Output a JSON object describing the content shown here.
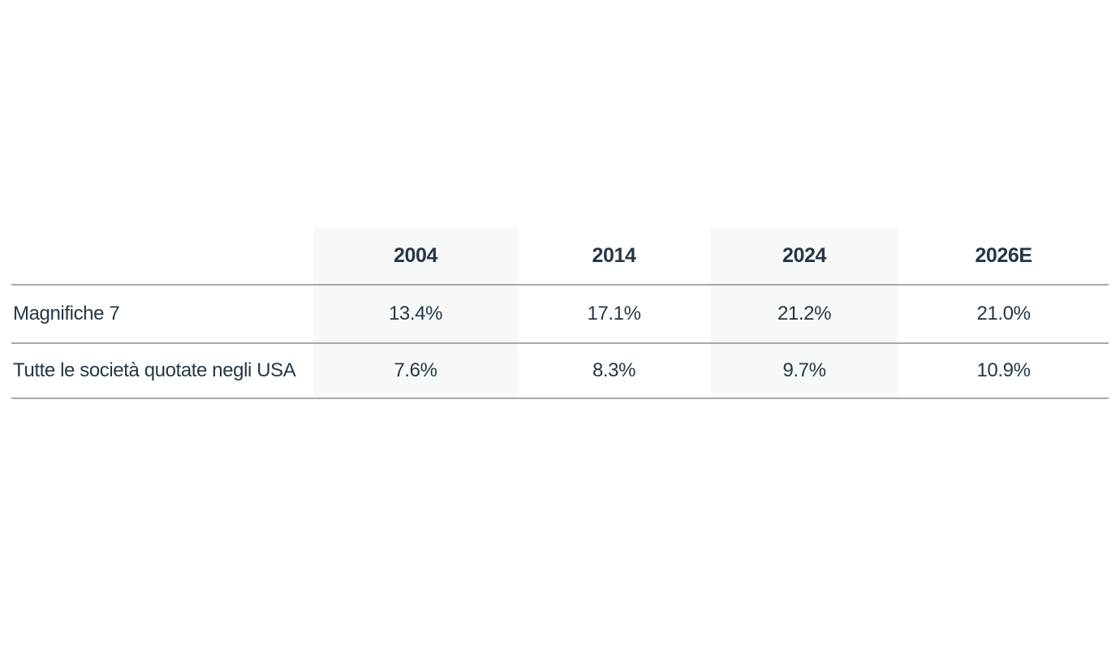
{
  "table": {
    "title": "",
    "columns": {
      "label_header": "",
      "c1": "2004",
      "c2": "2014",
      "c3": "2024",
      "c4": "2026E"
    },
    "highlighted_columns": [
      "2004",
      "2024"
    ],
    "rows": [
      {
        "label": "Magnifiche 7",
        "values": {
          "c1": "13.4%",
          "c2": "17.1%",
          "c3": "21.2%",
          "c4": "21.0%"
        }
      },
      {
        "label": "Tutte le società quotate negli USA",
        "values": {
          "c1": "7.6%",
          "c2": "8.3%",
          "c3": "9.7%",
          "c4": "10.9%"
        }
      }
    ]
  },
  "colors": {
    "text": "#253746",
    "rule_line": "#a6a9ab",
    "column_highlight": "#f7f8f8",
    "background": "#ffffff"
  }
}
